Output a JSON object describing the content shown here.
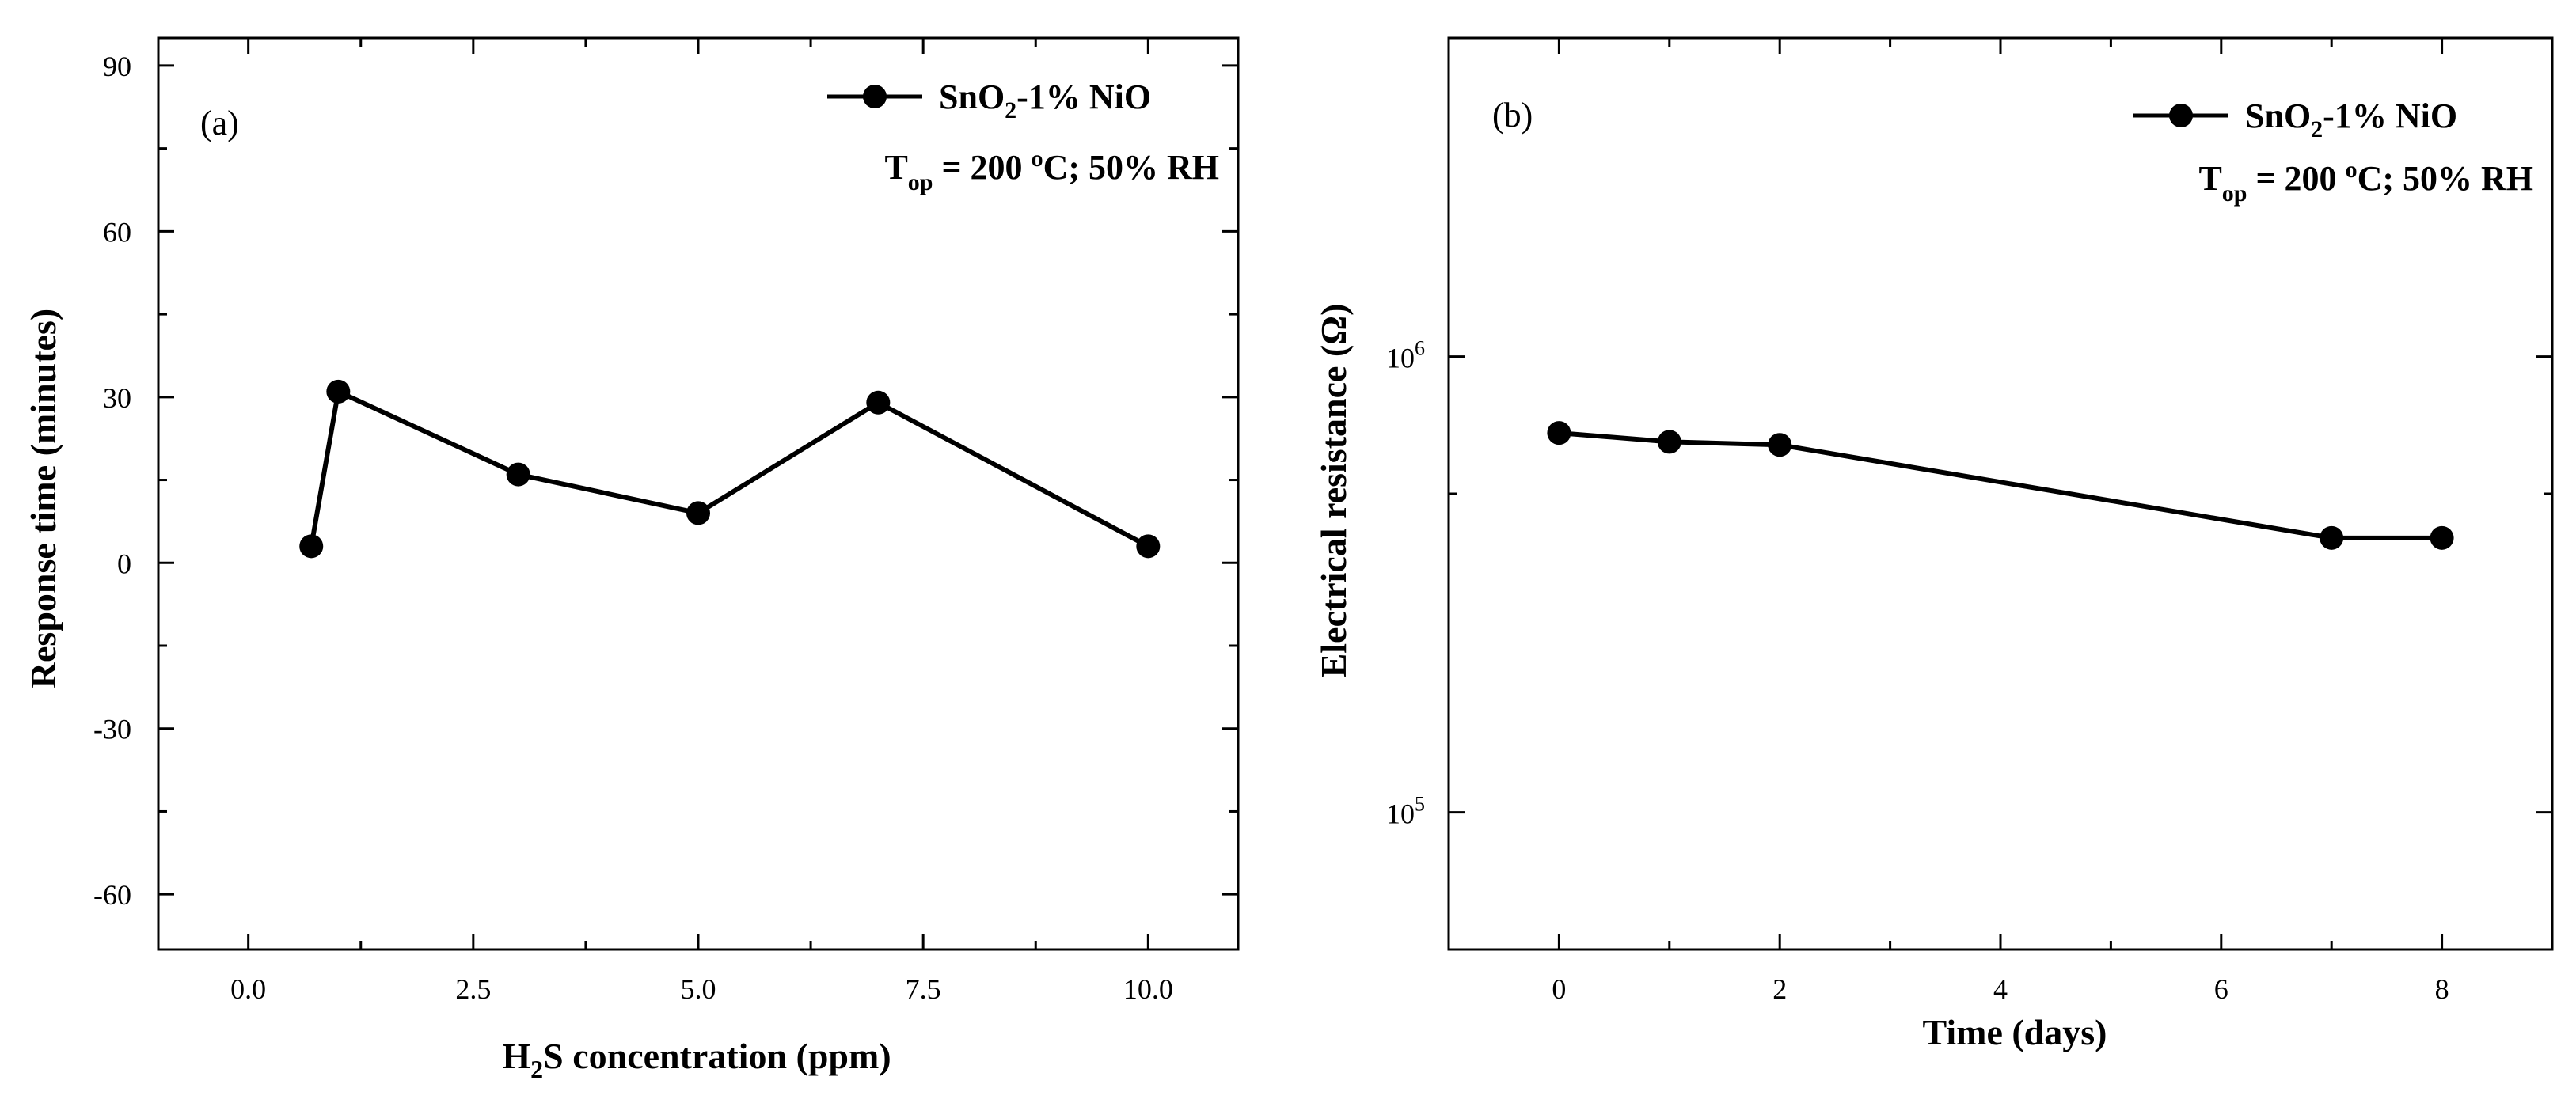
{
  "chart_data": [
    {
      "type": "line",
      "panel_label": "(a)",
      "xlabel": {
        "main": "H",
        "sub": "2",
        "rest": "S concentration (ppm)"
      },
      "ylabel": "Response time (minutes)",
      "xlim": [
        -1,
        11
      ],
      "ylim": [
        -70,
        95
      ],
      "x_ticks": [
        0.0,
        2.5,
        5.0,
        7.5,
        10.0
      ],
      "x_tick_labels": [
        "0.0",
        "2.5",
        "5.0",
        "7.5",
        "10.0"
      ],
      "y_ticks": [
        -60,
        -30,
        0,
        30,
        60,
        90
      ],
      "y_tick_labels": [
        "-60",
        "-30",
        "0",
        "30",
        "60",
        "90"
      ],
      "legend": {
        "main": "SnO",
        "sub": "2",
        "rest": "-1% NiO",
        "position": "top-right"
      },
      "condition": {
        "t": "T",
        "sub": "op",
        "mid": " = 200 ",
        "sup": "o",
        "rest": "C; 50% RH"
      },
      "series": [
        {
          "name": "SnO2-1% NiO",
          "x": [
            0.7,
            1,
            3,
            5,
            7,
            10
          ],
          "y": [
            3,
            31,
            16,
            9,
            29,
            3
          ]
        }
      ]
    },
    {
      "type": "line",
      "panel_label": "(b)",
      "xlabel": "Time (days)",
      "ylabel": "Electrical resistance (Ω)",
      "yscale": "log",
      "xlim": [
        -1,
        9
      ],
      "ylim": [
        50000,
        5000000
      ],
      "x_ticks": [
        0,
        2,
        4,
        6,
        8
      ],
      "x_tick_labels": [
        "0",
        "2",
        "4",
        "6",
        "8"
      ],
      "y_major_ticks": [
        100000,
        1000000
      ],
      "y_tick_labels": [
        {
          "base": "10",
          "exp": "5"
        },
        {
          "base": "10",
          "exp": "6"
        }
      ],
      "legend": {
        "main": "SnO",
        "sub": "2",
        "rest": "-1% NiO",
        "position": "top-right"
      },
      "condition": {
        "t": "T",
        "sub": "op",
        "mid": " = 200 ",
        "sup": "o",
        "rest": "C; 50% RH"
      },
      "series": [
        {
          "name": "SnO2-1% NiO",
          "x": [
            0,
            1,
            2,
            7,
            8
          ],
          "y": [
            680000,
            650000,
            640000,
            400000,
            400000
          ]
        }
      ]
    }
  ],
  "style": {
    "line_color": "#000000",
    "background": "#ffffff"
  }
}
